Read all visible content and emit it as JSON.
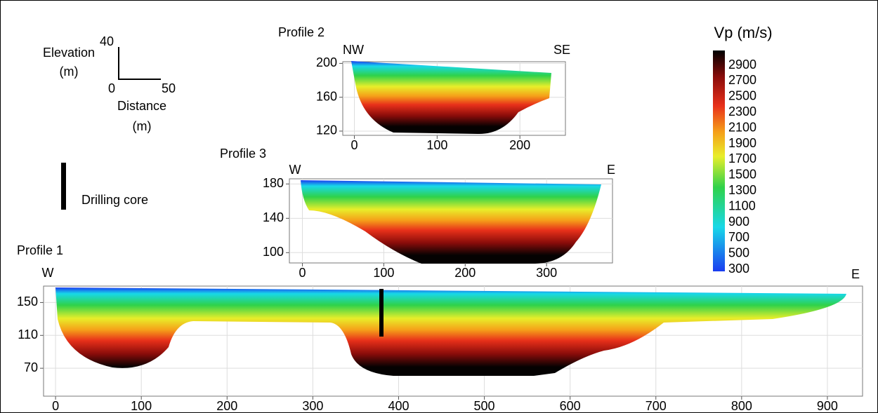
{
  "scale_bar": {
    "elevation_label": "Elevation",
    "elevation_unit": "(m)",
    "vertical_value": 40,
    "origin": 0,
    "horizontal_value": 50,
    "distance_label": "Distance",
    "distance_unit": "(m)"
  },
  "legend": {
    "label": "Drilling core"
  },
  "colorbar": {
    "title": "Vp (m/s)",
    "ticks": [
      2900,
      2700,
      2500,
      2300,
      2100,
      1900,
      1700,
      1500,
      1300,
      1100,
      900,
      700,
      500,
      300
    ]
  },
  "profiles": [
    {
      "title": "Profile 1",
      "left": "W",
      "right": "E",
      "xticks": [
        0,
        100,
        200,
        300,
        400,
        500,
        600,
        700,
        800,
        900
      ],
      "yticks": [
        150,
        110,
        70
      ],
      "xlim": [
        -14,
        941
      ],
      "ylim": [
        36,
        170
      ]
    },
    {
      "title": "Profile 2",
      "left": "NW",
      "right": "SE",
      "xticks": [
        0,
        100,
        200
      ],
      "yticks": [
        200,
        160,
        120
      ],
      "xlim": [
        -14,
        255
      ],
      "ylim": [
        115,
        202
      ]
    },
    {
      "title": "Profile 3",
      "left": "W",
      "right": "E",
      "xticks": [
        0,
        100,
        200,
        300
      ],
      "yticks": [
        180,
        140,
        100
      ],
      "xlim": [
        -16,
        381
      ],
      "ylim": [
        88,
        186
      ]
    }
  ]
}
